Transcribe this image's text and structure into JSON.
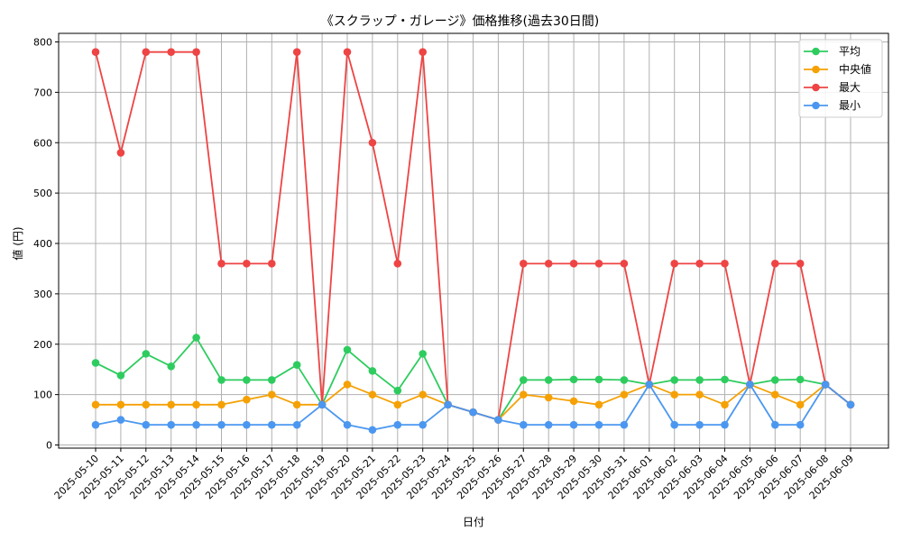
{
  "chart_data": {
    "type": "line",
    "title": "《スクラップ・ガレージ》価格推移(過去30日間)",
    "xlabel": "日付",
    "ylabel": "値 (円)",
    "ylim": [
      0,
      820
    ],
    "yticks": [
      0,
      100,
      200,
      300,
      400,
      500,
      600,
      700,
      800
    ],
    "grid": true,
    "legend_position": "top-right",
    "categories": [
      "2025-05-10",
      "2025-05-11",
      "2025-05-12",
      "2025-05-13",
      "2025-05-14",
      "2025-05-15",
      "2025-05-16",
      "2025-05-17",
      "2025-05-18",
      "2025-05-19",
      "2025-05-20",
      "2025-05-21",
      "2025-05-22",
      "2025-05-23",
      "2025-05-24",
      "2025-05-25",
      "2025-05-26",
      "2025-05-27",
      "2025-05-28",
      "2025-05-29",
      "2025-05-30",
      "2025-05-31",
      "2025-06-01",
      "2025-06-02",
      "2025-06-03",
      "2025-06-04",
      "2025-06-05",
      "2025-06-06",
      "2025-06-07",
      "2025-06-08",
      "2025-06-09"
    ],
    "series": [
      {
        "name": "平均",
        "color": "#2ecc5f",
        "values": [
          163,
          138,
          181,
          156,
          213,
          129,
          129,
          129,
          159,
          80,
          189,
          147,
          108,
          181,
          80,
          65,
          50,
          129,
          129,
          130,
          130,
          129,
          120,
          129,
          129,
          130,
          120,
          129,
          130,
          120,
          80
        ]
      },
      {
        "name": "中央値",
        "color": "#f5a105",
        "values": [
          80,
          80,
          80,
          80,
          80,
          80,
          90,
          100,
          80,
          80,
          120,
          100,
          80,
          100,
          80,
          65,
          50,
          100,
          94,
          87,
          80,
          100,
          120,
          100,
          100,
          80,
          120,
          100,
          80,
          120,
          80
        ]
      },
      {
        "name": "最大",
        "color": "#ee4444",
        "values": [
          780,
          580,
          780,
          780,
          780,
          360,
          360,
          360,
          780,
          80,
          780,
          600,
          360,
          780,
          80,
          65,
          50,
          360,
          360,
          360,
          360,
          360,
          120,
          360,
          360,
          360,
          120,
          360,
          360,
          120,
          80
        ]
      },
      {
        "name": "最小",
        "color": "#4b97f0",
        "values": [
          40,
          50,
          40,
          40,
          40,
          40,
          40,
          40,
          40,
          80,
          40,
          30,
          40,
          40,
          80,
          65,
          50,
          40,
          40,
          40,
          40,
          40,
          120,
          40,
          40,
          40,
          120,
          40,
          40,
          120,
          80
        ]
      }
    ]
  }
}
